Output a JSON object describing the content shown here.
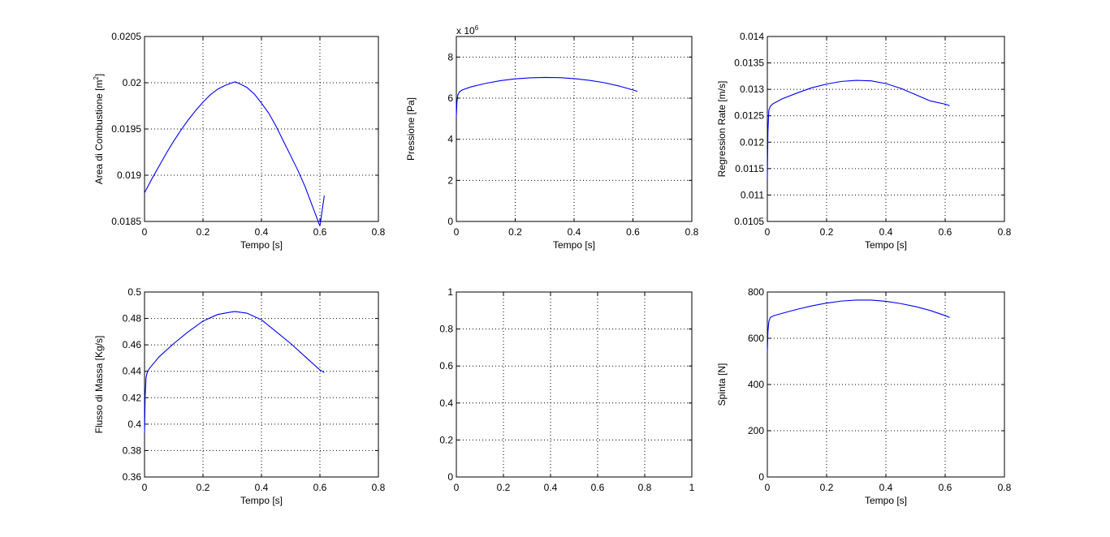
{
  "colors": {
    "series": "#0000ff",
    "axes": "#000000",
    "background": "#ffffff"
  },
  "chart_data": [
    {
      "type": "line",
      "xlabel": "Tempo [s]",
      "ylabel": "Area di Combustione [m",
      "ylabel_sup": "2",
      "ylabel_tail": "]",
      "xlim": [
        0,
        0.8
      ],
      "ylim": [
        0.0185,
        0.0205
      ],
      "xticks": [
        0,
        0.2,
        0.4,
        0.6,
        0.8
      ],
      "yticks": [
        0.0185,
        0.019,
        0.0195,
        0.02,
        0.0205
      ],
      "xtick_labels": [
        "0",
        "0.2",
        "0.4",
        "0.6",
        "0.8"
      ],
      "ytick_labels": [
        "0.0185",
        "0.019",
        "0.0195",
        "0.02",
        "0.0205"
      ],
      "grid": true,
      "series": [
        {
          "x": [
            0,
            0.025,
            0.05,
            0.075,
            0.1,
            0.125,
            0.15,
            0.175,
            0.2,
            0.225,
            0.25,
            0.275,
            0.3,
            0.31,
            0.325,
            0.35,
            0.375,
            0.4,
            0.425,
            0.45,
            0.475,
            0.5,
            0.525,
            0.55,
            0.575,
            0.6,
            0.615
          ],
          "y": [
            0.01881,
            0.01896,
            0.0191,
            0.01924,
            0.01937,
            0.01949,
            0.0196,
            0.0197,
            0.01979,
            0.01987,
            0.01993,
            0.01997,
            0.02,
            0.02001,
            0.01999,
            0.01995,
            0.01988,
            0.01978,
            0.01967,
            0.01953,
            0.01937,
            0.01921,
            0.01905,
            0.01887,
            0.01866,
            0.01845,
            0.01878
          ]
        }
      ]
    },
    {
      "type": "line",
      "xlabel": "Tempo [s]",
      "ylabel": "Pressione [Pa]",
      "multiplier_base": "x 10",
      "multiplier_exp": "6",
      "xlim": [
        0,
        0.8
      ],
      "ylim": [
        0,
        9
      ],
      "xticks": [
        0,
        0.2,
        0.4,
        0.6,
        0.8
      ],
      "yticks": [
        0,
        2,
        4,
        6,
        8
      ],
      "xtick_labels": [
        "0",
        "0.2",
        "0.4",
        "0.6",
        "0.8"
      ],
      "ytick_labels": [
        "0",
        "2",
        "4",
        "6",
        "8"
      ],
      "grid": true,
      "series": [
        {
          "x": [
            0,
            0.002,
            0.005,
            0.01,
            0.02,
            0.05,
            0.1,
            0.15,
            0.2,
            0.25,
            0.3,
            0.35,
            0.4,
            0.45,
            0.5,
            0.55,
            0.6,
            0.615
          ],
          "y": [
            5.1,
            5.8,
            6.15,
            6.3,
            6.4,
            6.55,
            6.72,
            6.85,
            6.94,
            6.99,
            7.01,
            7.0,
            6.95,
            6.87,
            6.76,
            6.6,
            6.4,
            6.33
          ]
        }
      ]
    },
    {
      "type": "line",
      "xlabel": "Tempo [s]",
      "ylabel": "Regression Rate [m/s]",
      "xlim": [
        0,
        0.8
      ],
      "ylim": [
        0.0105,
        0.014
      ],
      "xticks": [
        0,
        0.2,
        0.4,
        0.6,
        0.8
      ],
      "yticks": [
        0.0105,
        0.011,
        0.0115,
        0.012,
        0.0125,
        0.013,
        0.0135,
        0.014
      ],
      "xtick_labels": [
        "0",
        "0.2",
        "0.4",
        "0.6",
        "0.8"
      ],
      "ytick_labels": [
        "0.0105",
        "0.011",
        "0.0115",
        "0.012",
        "0.0125",
        "0.013",
        "0.0135",
        "0.014"
      ],
      "grid": true,
      "series": [
        {
          "x": [
            0,
            0.002,
            0.005,
            0.01,
            0.02,
            0.05,
            0.1,
            0.15,
            0.2,
            0.25,
            0.3,
            0.35,
            0.4,
            0.45,
            0.5,
            0.55,
            0.6,
            0.615
          ],
          "y": [
            0.0113,
            0.0122,
            0.0126,
            0.01268,
            0.01273,
            0.01282,
            0.01293,
            0.01303,
            0.0131,
            0.01315,
            0.01317,
            0.01316,
            0.01311,
            0.01302,
            0.0129,
            0.01278,
            0.01272,
            0.01269
          ]
        }
      ]
    },
    {
      "type": "line",
      "xlabel": "Tempo [s]",
      "ylabel": "Flusso di Massa [Kg/s]",
      "xlim": [
        0,
        0.8
      ],
      "ylim": [
        0.36,
        0.5
      ],
      "xticks": [
        0,
        0.2,
        0.4,
        0.6,
        0.8
      ],
      "yticks": [
        0.36,
        0.38,
        0.4,
        0.42,
        0.44,
        0.46,
        0.48,
        0.5
      ],
      "xtick_labels": [
        "0",
        "0.2",
        "0.4",
        "0.6",
        "0.8"
      ],
      "ytick_labels": [
        "0.36",
        "0.38",
        "0.4",
        "0.42",
        "0.44",
        "0.46",
        "0.48",
        "0.5"
      ],
      "grid": true,
      "series": [
        {
          "x": [
            0,
            0.002,
            0.005,
            0.01,
            0.02,
            0.05,
            0.1,
            0.15,
            0.2,
            0.25,
            0.3,
            0.31,
            0.35,
            0.4,
            0.45,
            0.5,
            0.55,
            0.6,
            0.615
          ],
          "y": [
            0.393,
            0.42,
            0.435,
            0.44,
            0.443,
            0.451,
            0.461,
            0.47,
            0.478,
            0.483,
            0.485,
            0.4852,
            0.484,
            0.479,
            0.47,
            0.461,
            0.451,
            0.441,
            0.439
          ]
        }
      ]
    },
    {
      "type": "line",
      "xlabel": "",
      "ylabel": "",
      "xlim": [
        0,
        1
      ],
      "ylim": [
        0,
        1
      ],
      "xticks": [
        0,
        0.2,
        0.4,
        0.6,
        0.8,
        1
      ],
      "yticks": [
        0,
        0.2,
        0.4,
        0.6,
        0.8,
        1
      ],
      "xtick_labels": [
        "0",
        "0.2",
        "0.4",
        "0.6",
        "0.8",
        "1"
      ],
      "ytick_labels": [
        "0",
        "0.2",
        "0.4",
        "0.6",
        "0.8",
        "1"
      ],
      "grid": true,
      "series": []
    },
    {
      "type": "line",
      "xlabel": "Tempo [s]",
      "ylabel": "Spinta [N]",
      "xlim": [
        0,
        0.8
      ],
      "ylim": [
        0,
        800
      ],
      "xticks": [
        0,
        0.2,
        0.4,
        0.6,
        0.8
      ],
      "yticks": [
        0,
        200,
        400,
        600,
        800
      ],
      "xtick_labels": [
        "0",
        "0.2",
        "0.4",
        "0.6",
        "0.8"
      ],
      "ytick_labels": [
        "0",
        "200",
        "400",
        "600",
        "800"
      ],
      "grid": true,
      "series": [
        {
          "x": [
            0,
            0.002,
            0.005,
            0.01,
            0.02,
            0.05,
            0.1,
            0.15,
            0.2,
            0.25,
            0.3,
            0.35,
            0.4,
            0.45,
            0.5,
            0.55,
            0.6,
            0.615
          ],
          "y": [
            540,
            630,
            672,
            690,
            697,
            708,
            725,
            740,
            752,
            761,
            765,
            765,
            760,
            750,
            737,
            720,
            698,
            690
          ]
        }
      ]
    }
  ]
}
